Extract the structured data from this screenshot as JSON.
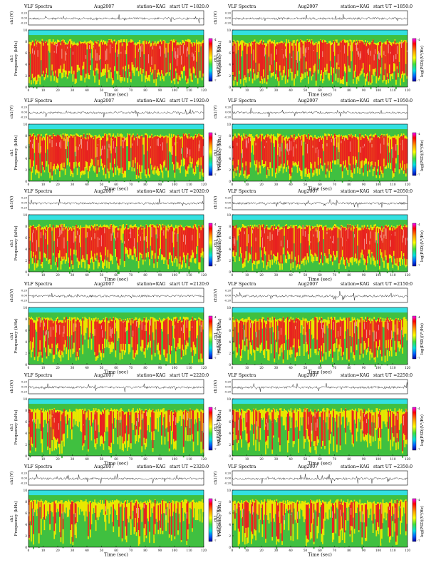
{
  "figure": {
    "title_left": "VLF Spectra",
    "month": "Aug",
    "year": "2007",
    "station_label": "station=KAG",
    "start_label": "start  UT",
    "waveform_axis_label": "ch1(V)",
    "waveform_ticks": [
      "0.20",
      "0.00",
      "-0.20"
    ],
    "freq_axis_label": "Frequency  (kHz)",
    "channel_label": "ch1",
    "colorbar_label": "log(PSD)(V²/Hz)",
    "colorbar_ticks": [
      "-4",
      "-7"
    ],
    "colors": {
      "noise_band": "#33e0e0",
      "green": "#40c040",
      "yellow": "#e8e800",
      "red": "#e82020",
      "white_speck": "#ffffff"
    }
  },
  "chart_data": [
    {
      "type": "heatmap",
      "title": "VLF Spectra  Aug2007  station=KAG  start UT =1820:0",
      "start_ut": "=1820:0",
      "date": "2007-08",
      "xlabel": "Time  (sec)",
      "ylabel": "Frequency  (kHz)",
      "xlim": [
        0,
        120
      ],
      "ylim": [
        0,
        10
      ],
      "xticks": [
        "0",
        "10",
        "20",
        "30",
        "40",
        "50",
        "60",
        "70",
        "80",
        "90",
        "100",
        "110",
        "120"
      ],
      "yticks": [
        "0",
        "2",
        "4",
        "6",
        "8",
        "10"
      ],
      "activity_level": "very-high"
    },
    {
      "type": "heatmap",
      "title": "VLF Spectra  Aug2007  station=KAG  start UT =1850:0",
      "start_ut": "=1850:0",
      "date": "2007-08",
      "xlabel": "Time  (sec)",
      "ylabel": "Frequency  (kHz)",
      "xlim": [
        0,
        120
      ],
      "ylim": [
        0,
        10
      ],
      "xticks": [
        "0",
        "10",
        "20",
        "30",
        "40",
        "50",
        "60",
        "70",
        "80",
        "90",
        "100",
        "110",
        "120"
      ],
      "yticks": [
        "0",
        "2",
        "4",
        "6",
        "8",
        "10"
      ],
      "activity_level": "very-high"
    },
    {
      "type": "heatmap",
      "title": "VLF Spectra  Aug2007  station=KAG  start UT =1920:0",
      "start_ut": "=1920:0",
      "date": "2007-08",
      "xlabel": "Time  (sec)",
      "ylabel": "Frequency  (kHz)",
      "xlim": [
        0,
        120
      ],
      "ylim": [
        0,
        10
      ],
      "xticks": [
        "0",
        "10",
        "20",
        "30",
        "40",
        "50",
        "60",
        "70",
        "80",
        "90",
        "100",
        "110",
        "120"
      ],
      "yticks": [
        "0",
        "2",
        "4",
        "6",
        "8",
        "10"
      ],
      "activity_level": "very-high"
    },
    {
      "type": "heatmap",
      "title": "VLF Spectra  Aug2007  station=KAG  start UT =1950:0",
      "start_ut": "=1950:0",
      "date": "2007-08",
      "xlabel": "Time  (sec)",
      "ylabel": "Frequency  (kHz)",
      "xlim": [
        0,
        120
      ],
      "ylim": [
        0,
        10
      ],
      "xticks": [
        "0",
        "10",
        "20",
        "30",
        "40",
        "50",
        "60",
        "70",
        "80",
        "90",
        "100",
        "110",
        "120"
      ],
      "yticks": [
        "0",
        "2",
        "4",
        "6",
        "8",
        "10"
      ],
      "activity_level": "very-high"
    },
    {
      "type": "heatmap",
      "title": "VLF Spectra  Aug2007  station=KAG  start UT =2020:0",
      "start_ut": "=2020:0",
      "date": "2007-08",
      "xlabel": "Time  (sec)",
      "ylabel": "Frequency  (kHz)",
      "xlim": [
        0,
        120
      ],
      "ylim": [
        0,
        10
      ],
      "xticks": [
        "0",
        "10",
        "20",
        "30",
        "40",
        "50",
        "60",
        "70",
        "80",
        "90",
        "100",
        "110",
        "120"
      ],
      "yticks": [
        "0",
        "2",
        "4",
        "6",
        "8",
        "10"
      ],
      "activity_level": "very-high"
    },
    {
      "type": "heatmap",
      "title": "VLF Spectra  Aug2007  station=KAG  start UT =2050:0",
      "start_ut": "=2050:0",
      "date": "2007-08",
      "xlabel": "Time  (sec)",
      "ylabel": "Frequency  (kHz)",
      "xlim": [
        0,
        120
      ],
      "ylim": [
        0,
        10
      ],
      "xticks": [
        "0",
        "10",
        "20",
        "30",
        "40",
        "50",
        "60",
        "70",
        "80",
        "90",
        "100",
        "110",
        "120"
      ],
      "yticks": [
        "0",
        "2",
        "4",
        "6",
        "8",
        "10"
      ],
      "activity_level": "very-high"
    },
    {
      "type": "heatmap",
      "title": "VLF Spectra  Aug2007  station=KAG  start UT =2120:0",
      "start_ut": "=2120:0",
      "date": "2007-08",
      "xlabel": "Time  (sec)",
      "ylabel": "Frequency  (kHz)",
      "xlim": [
        0,
        120
      ],
      "ylim": [
        0,
        10
      ],
      "xticks": [
        "0",
        "10",
        "20",
        "30",
        "40",
        "50",
        "60",
        "70",
        "80",
        "90",
        "100",
        "110",
        "120"
      ],
      "yticks": [
        "0",
        "2",
        "4",
        "6",
        "8",
        "10"
      ],
      "activity_level": "high"
    },
    {
      "type": "heatmap",
      "title": "VLF Spectra  Aug2007  station=KAG  start UT =2150:0",
      "start_ut": "=2150:0",
      "date": "2007-08",
      "xlabel": "Time  (sec)",
      "ylabel": "Frequency  (kHz)",
      "xlim": [
        0,
        120
      ],
      "ylim": [
        0,
        10
      ],
      "xticks": [
        "0",
        "10",
        "20",
        "30",
        "40",
        "50",
        "60",
        "70",
        "80",
        "90",
        "100",
        "110",
        "120"
      ],
      "yticks": [
        "0",
        "2",
        "4",
        "6",
        "8",
        "10"
      ],
      "activity_level": "high"
    },
    {
      "type": "heatmap",
      "title": "VLF Spectra  Aug2007  station=KAG  start UT =2220:0",
      "start_ut": "=2220:0",
      "date": "2007-08",
      "xlabel": "Time  (sec)",
      "ylabel": "Frequency  (kHz)",
      "xlim": [
        0,
        120
      ],
      "ylim": [
        0,
        10
      ],
      "xticks": [
        "0",
        "10",
        "20",
        "30",
        "40",
        "50",
        "60",
        "70",
        "80",
        "90",
        "100",
        "110",
        "120"
      ],
      "yticks": [
        "0",
        "2",
        "4",
        "6",
        "8",
        "10"
      ],
      "activity_level": "medium"
    },
    {
      "type": "heatmap",
      "title": "VLF Spectra  Aug2007  station=KAG  start UT =2250:0",
      "start_ut": "=2250:0",
      "date": "2007-08",
      "xlabel": "Time  (sec)",
      "ylabel": "Frequency  (kHz)",
      "xlim": [
        0,
        120
      ],
      "ylim": [
        0,
        10
      ],
      "xticks": [
        "0",
        "10",
        "20",
        "30",
        "40",
        "50",
        "60",
        "70",
        "80",
        "90",
        "100",
        "110",
        "120"
      ],
      "yticks": [
        "0",
        "2",
        "4",
        "6",
        "8",
        "10"
      ],
      "activity_level": "medium"
    },
    {
      "type": "heatmap",
      "title": "VLF Spectra  Aug2007  station=KAG  start UT =2320:0",
      "start_ut": "=2320:0",
      "date": "2007-08",
      "xlabel": "Time  (sec)",
      "ylabel": "Frequency  (kHz)",
      "xlim": [
        0,
        120
      ],
      "ylim": [
        0,
        10
      ],
      "xticks": [
        "0",
        "10",
        "20",
        "30",
        "40",
        "50",
        "60",
        "70",
        "80",
        "90",
        "100",
        "110",
        "120"
      ],
      "yticks": [
        "0",
        "2",
        "4",
        "6",
        "8",
        "10"
      ],
      "activity_level": "low"
    },
    {
      "type": "heatmap",
      "title": "VLF Spectra  Aug2007  station=KAG  start UT =2350:0",
      "start_ut": "=2350:0",
      "date": "2007-08",
      "xlabel": "Time  (sec)",
      "ylabel": "Frequency  (kHz)",
      "xlim": [
        0,
        120
      ],
      "ylim": [
        0,
        10
      ],
      "xticks": [
        "0",
        "10",
        "20",
        "30",
        "40",
        "50",
        "60",
        "70",
        "80",
        "90",
        "100",
        "110",
        "120"
      ],
      "yticks": [
        "0",
        "2",
        "4",
        "6",
        "8",
        "10"
      ],
      "activity_level": "low"
    }
  ]
}
